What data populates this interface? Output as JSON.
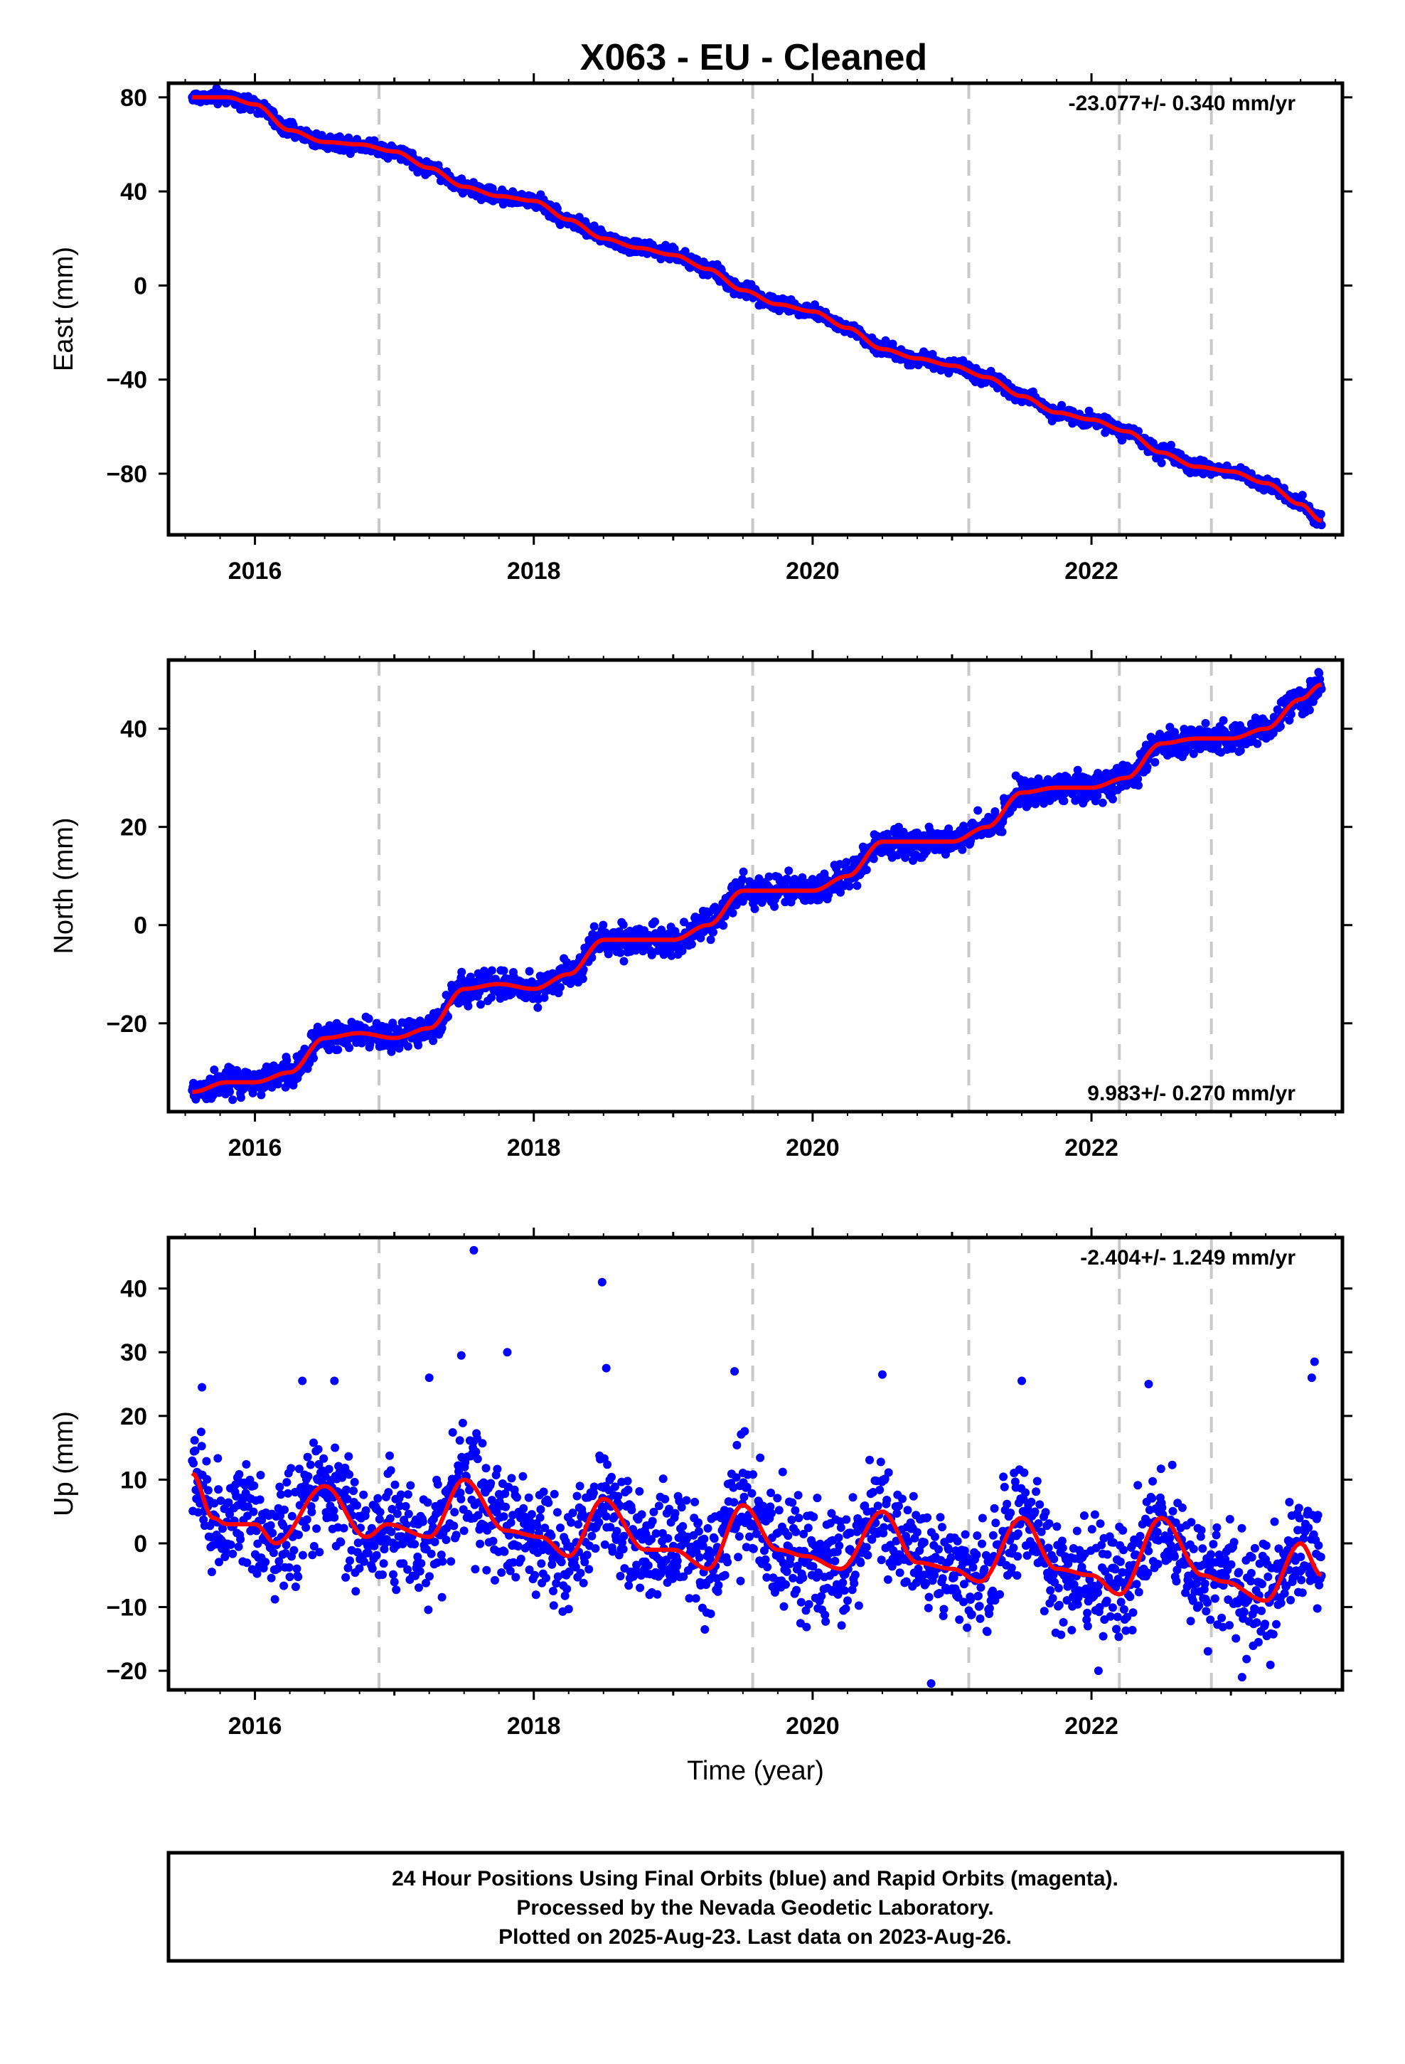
{
  "title": "X063  - EU - Cleaned",
  "footer": {
    "line1": "24 Hour Positions Using Final Orbits (blue) and Rapid Orbits (magenta).",
    "line2": "Processed by the Nevada Geodetic Laboratory.",
    "line3": "Plotted on 2025-Aug-23. Last data on 2023-Aug-26."
  },
  "colors": {
    "observations": "#0000ff",
    "model": "#ff0000",
    "event_lines": "#c8c8c8"
  },
  "chart_data": [
    {
      "type": "scatter",
      "ylabel": "East (mm)",
      "xlabel": "",
      "xlim": [
        2015.38,
        2023.8
      ],
      "ylim": [
        -106,
        86
      ],
      "xticks": [
        2016,
        2018,
        2020,
        2022
      ],
      "xtick_labels": [
        "2016",
        "2018",
        "2020",
        "2022"
      ],
      "yticks": [
        80,
        40,
        0,
        -40,
        -80
      ],
      "ytick_labels": [
        "80",
        "40",
        "0",
        "−40",
        "−80"
      ],
      "rate_label": "-23.077+/- 0.340 mm/yr",
      "rate_position": "top-right",
      "x_range": [
        2015.55,
        2023.65
      ],
      "event_lines_x": [
        2016.89,
        2019.57,
        2021.12,
        2022.2,
        2022.86
      ],
      "model_curve": {
        "x": [
          2015.55,
          2015.8,
          2016.0,
          2016.25,
          2016.5,
          2016.75,
          2017.0,
          2017.25,
          2017.5,
          2017.75,
          2018.0,
          2018.25,
          2018.5,
          2018.75,
          2019.0,
          2019.25,
          2019.5,
          2019.75,
          2020.0,
          2020.25,
          2020.5,
          2020.75,
          2021.0,
          2021.25,
          2021.5,
          2021.75,
          2022.0,
          2022.25,
          2022.5,
          2022.75,
          2023.0,
          2023.25,
          2023.5,
          2023.65
        ],
        "y": [
          80,
          80,
          77,
          66,
          61,
          60,
          57,
          50,
          42,
          38,
          36,
          28,
          20,
          16,
          13,
          7,
          -2,
          -8,
          -11,
          -18,
          -27,
          -31,
          -34,
          -39,
          -47,
          -54,
          -57,
          -62,
          -71,
          -77,
          -79,
          -84,
          -93,
          -100
        ]
      },
      "scatter_noise_mm": 1.5
    },
    {
      "type": "scatter",
      "ylabel": "North (mm)",
      "xlabel": "",
      "xlim": [
        2015.38,
        2023.8
      ],
      "ylim": [
        -38,
        54
      ],
      "xticks": [
        2016,
        2018,
        2020,
        2022
      ],
      "xtick_labels": [
        "2016",
        "2018",
        "2020",
        "2022"
      ],
      "yticks": [
        40,
        20,
        0,
        -20
      ],
      "ytick_labels": [
        "40",
        "20",
        "0",
        "−20"
      ],
      "rate_label": "9.983+/- 0.270 mm/yr",
      "rate_position": "bottom-right",
      "x_range": [
        2015.55,
        2023.65
      ],
      "event_lines_x": [
        2016.89,
        2019.57,
        2021.12,
        2022.2,
        2022.86
      ],
      "model_curve": {
        "x": [
          2015.55,
          2015.8,
          2016.0,
          2016.25,
          2016.5,
          2016.75,
          2017.0,
          2017.25,
          2017.5,
          2017.75,
          2018.0,
          2018.25,
          2018.5,
          2018.75,
          2019.0,
          2019.25,
          2019.5,
          2019.75,
          2020.0,
          2020.25,
          2020.5,
          2020.75,
          2021.0,
          2021.25,
          2021.5,
          2021.75,
          2022.0,
          2022.25,
          2022.5,
          2022.75,
          2023.0,
          2023.25,
          2023.5,
          2023.65
        ],
        "y": [
          -34,
          -32,
          -32,
          -30,
          -23,
          -22,
          -23,
          -21,
          -13,
          -12,
          -13,
          -10,
          -3,
          -3,
          -3,
          0,
          7,
          7,
          7,
          10,
          17,
          17,
          17,
          20,
          27,
          28,
          28,
          30,
          37,
          38,
          38,
          40,
          46,
          49
        ]
      },
      "scatter_noise_mm": 1.5
    },
    {
      "type": "scatter",
      "ylabel": "Up (mm)",
      "xlabel": "Time (year)",
      "xlim": [
        2015.38,
        2023.8
      ],
      "ylim": [
        -23,
        48
      ],
      "xticks": [
        2016,
        2018,
        2020,
        2022
      ],
      "xtick_labels": [
        "2016",
        "2018",
        "2020",
        "2022"
      ],
      "yticks": [
        40,
        30,
        20,
        10,
        0,
        -10,
        -20
      ],
      "ytick_labels": [
        "40",
        "30",
        "20",
        "10",
        "0",
        "−10",
        "−20"
      ],
      "rate_label": "-2.404+/- 1.249 mm/yr",
      "rate_position": "top-right",
      "x_range": [
        2015.55,
        2023.65
      ],
      "event_lines_x": [
        2016.89,
        2019.57,
        2021.12,
        2022.2,
        2022.86
      ],
      "model_curve": {
        "x": [
          2015.55,
          2015.7,
          2015.8,
          2016.0,
          2016.15,
          2016.5,
          2016.8,
          2016.95,
          2017.25,
          2017.5,
          2017.8,
          2018.05,
          2018.25,
          2018.5,
          2018.8,
          2019.0,
          2019.25,
          2019.5,
          2019.75,
          2019.95,
          2020.2,
          2020.5,
          2020.75,
          2021.0,
          2021.2,
          2021.5,
          2021.75,
          2022.0,
          2022.2,
          2022.5,
          2022.8,
          2022.95,
          2023.25,
          2023.5,
          2023.65
        ],
        "y": [
          11,
          4,
          3,
          3,
          0,
          9,
          1,
          3,
          1,
          10,
          2,
          1,
          -2,
          7,
          -1,
          -1,
          -4,
          6,
          -1,
          -2,
          -4,
          5,
          -3,
          -4,
          -6,
          4,
          -4,
          -5,
          -8,
          4,
          -5,
          -6,
          -9,
          0,
          -5
        ]
      },
      "scatter_noise_mm": 4.5,
      "outliers": [
        {
          "x": 2017.57,
          "y": 46
        },
        {
          "x": 2018.49,
          "y": 41
        },
        {
          "x": 2017.48,
          "y": 29.5
        },
        {
          "x": 2017.81,
          "y": 30
        },
        {
          "x": 2016.57,
          "y": 25.5
        },
        {
          "x": 2019.44,
          "y": 27
        },
        {
          "x": 2018.52,
          "y": 27.5
        },
        {
          "x": 2020.5,
          "y": 26.5
        },
        {
          "x": 2021.5,
          "y": 25.5
        },
        {
          "x": 2022.41,
          "y": 25
        },
        {
          "x": 2023.6,
          "y": 28.5
        },
        {
          "x": 2023.58,
          "y": 26
        },
        {
          "x": 2020.85,
          "y": -22
        },
        {
          "x": 2022.05,
          "y": -20
        },
        {
          "x": 2023.08,
          "y": -21
        },
        {
          "x": 2015.62,
          "y": 24.5
        },
        {
          "x": 2016.34,
          "y": 25.5
        },
        {
          "x": 2017.25,
          "y": 26
        }
      ]
    }
  ]
}
